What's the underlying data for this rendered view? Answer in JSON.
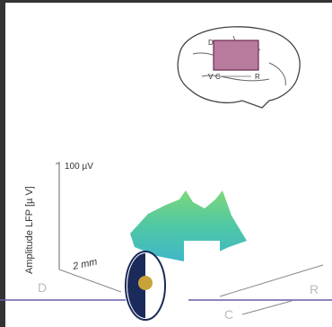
{
  "inset": {
    "labels": [
      "D",
      "V",
      "C",
      "R"
    ]
  },
  "axes": {
    "y_label": "Amplitude LFP [µ V]",
    "scale_bar": "100 µV",
    "distance": "2 mm",
    "left": "D",
    "right": "R",
    "front": "C"
  }
}
